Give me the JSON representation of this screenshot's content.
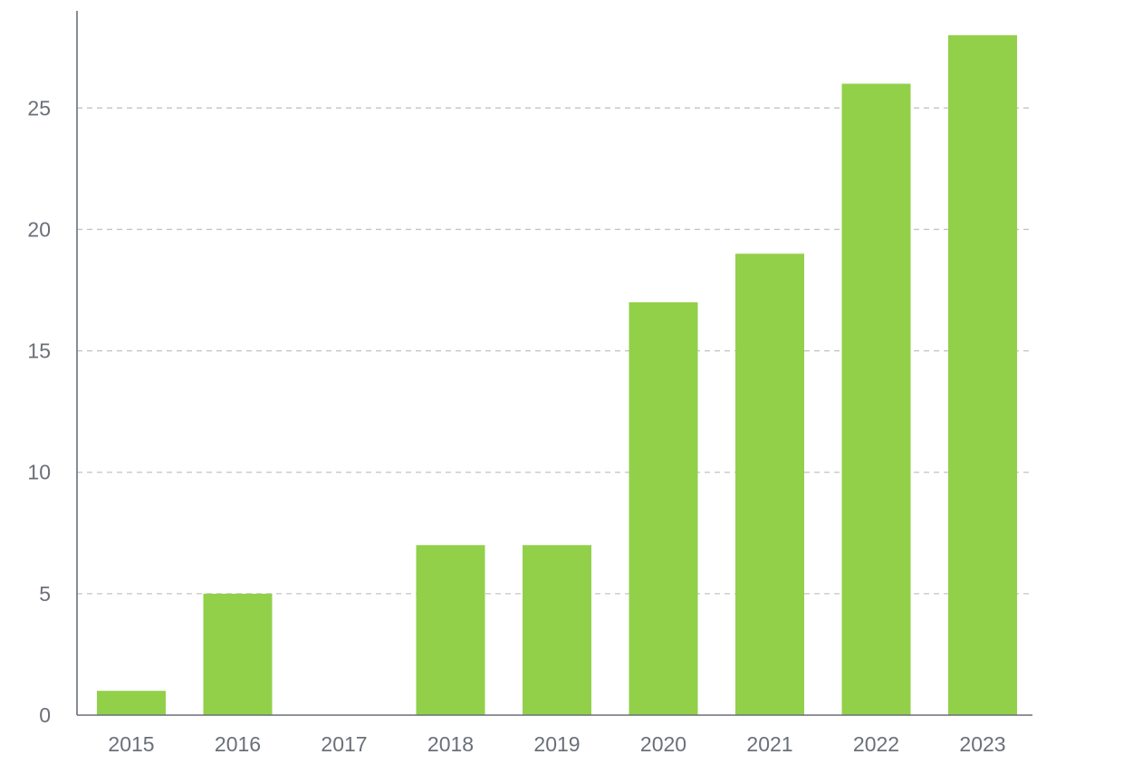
{
  "chart_data": {
    "type": "bar",
    "categories": [
      "2015",
      "2016",
      "2017",
      "2018",
      "2019",
      "2020",
      "2021",
      "2022",
      "2023"
    ],
    "values": [
      1,
      5,
      0,
      7,
      7,
      17,
      19,
      26,
      28
    ],
    "yticks": [
      "0",
      "5",
      "10",
      "15",
      "20",
      "25"
    ],
    "ylim": [
      0,
      29
    ],
    "grid": "horizontal-dashed",
    "bar_color": "#92d04a",
    "axis_color": "#6b6f78",
    "grid_color": "#c4c4c4"
  }
}
